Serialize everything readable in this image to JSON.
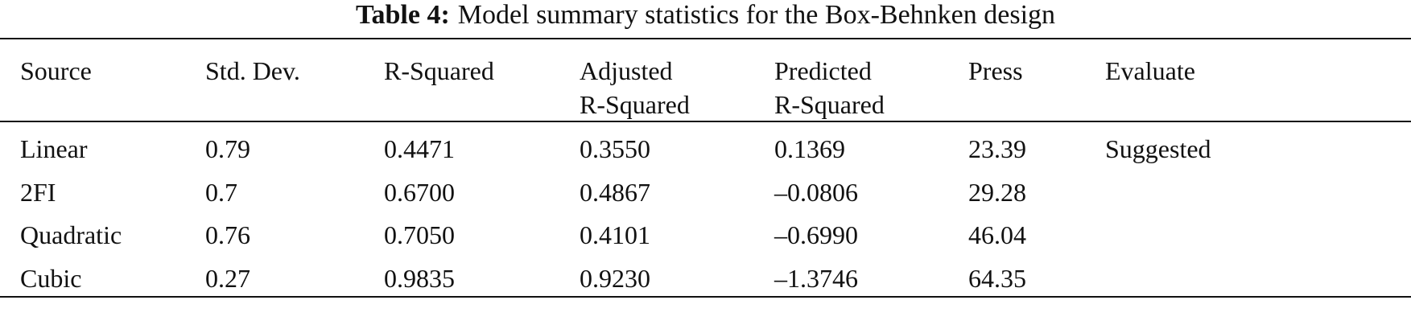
{
  "caption": {
    "label": "Table 4:",
    "text": "Model summary statistics for the Box-Behnken design"
  },
  "table": {
    "header": [
      [
        "Source"
      ],
      [
        "Std. Dev."
      ],
      [
        "R-Squared"
      ],
      [
        "Adjusted",
        "R-Squared"
      ],
      [
        "Predicted",
        "R-Squared"
      ],
      [
        "Press"
      ],
      [
        "Evaluate"
      ]
    ],
    "rows": [
      [
        "Linear",
        "0.79",
        "0.4471",
        "0.3550",
        "0.1369",
        "23.39",
        "Suggested"
      ],
      [
        "2FI",
        "0.7",
        "0.6700",
        "0.4867",
        "–0.0806",
        "29.28"
      ],
      [
        "Quadratic",
        "0.76",
        "0.7050",
        "0.4101",
        "–0.6990",
        "46.04"
      ],
      [
        "Cubic",
        "0.27",
        "0.9835",
        "0.9230",
        "–1.3746",
        "64.35"
      ]
    ]
  }
}
